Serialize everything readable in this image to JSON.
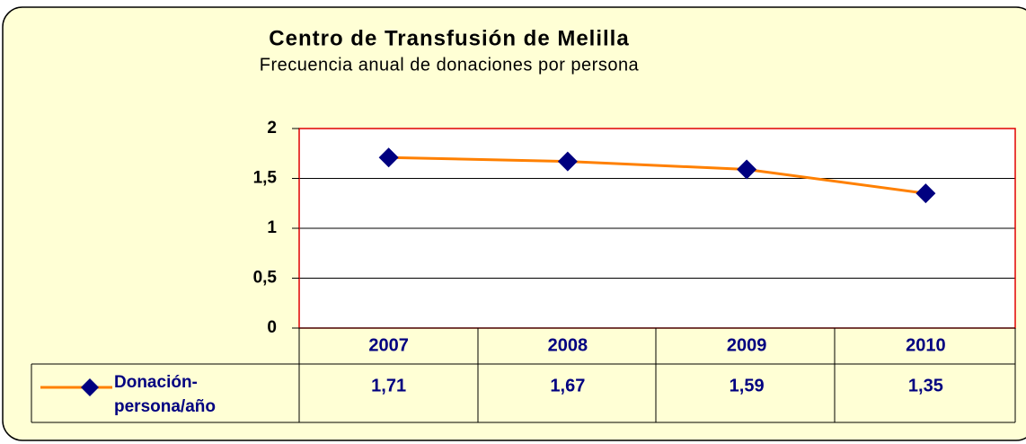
{
  "chart_data": {
    "type": "line",
    "title": "Centro de Transfusión de Melilla",
    "subtitle": "Frecuencia anual de donaciones por persona",
    "categories": [
      "2007",
      "2008",
      "2009",
      "2010"
    ],
    "series": [
      {
        "name": "Donación-persona/año",
        "color": "#ff8000",
        "marker_color": "#000080",
        "values": [
          1.71,
          1.67,
          1.59,
          1.35
        ],
        "value_labels": [
          "1,71",
          "1,67",
          "1,59",
          "1,35"
        ]
      }
    ],
    "ylim": [
      0,
      2
    ],
    "yticks": [
      0,
      {
        "value": 0.5,
        "label": "0,5"
      },
      1,
      {
        "value": 1.5,
        "label": "1,5"
      },
      2
    ],
    "grid": true
  }
}
